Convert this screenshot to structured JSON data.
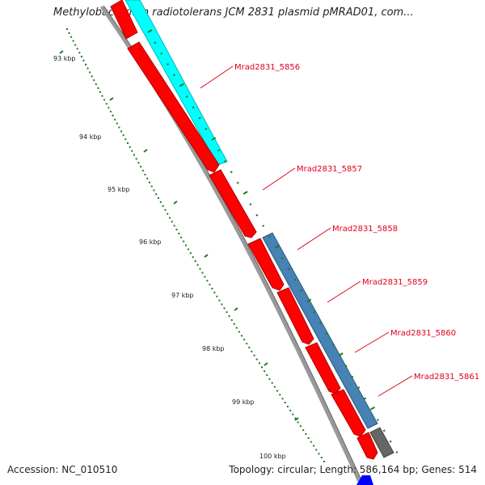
{
  "title": "Methylobacterium radiotolerans JCM 2831 plasmid pMRAD01, com...",
  "footer": {
    "accession": "Accession: NC_010510",
    "summary": "Topology: circular; Length: 586,164 bp; Genes: 514"
  },
  "scale": {
    "tick_labels": [
      "93 kbp",
      "94 kbp",
      "95 kbp",
      "96 kbp",
      "97 kbp",
      "98 kbp",
      "99 kbp",
      "100 kbp"
    ],
    "tick_color": "#1e7a1e"
  },
  "genes": [
    {
      "id": "Mrad2831_5856"
    },
    {
      "id": "Mrad2831_5857"
    },
    {
      "id": "Mrad2831_5858"
    },
    {
      "id": "Mrad2831_5859"
    },
    {
      "id": "Mrad2831_5860"
    },
    {
      "id": "Mrad2831_5861"
    }
  ],
  "colors": {
    "cds": "#ff0000",
    "cds_dark": "#c80000",
    "cyan_feature": "#00ffff",
    "blue_feature": "#4682b4",
    "gray_feature": "#666666",
    "backbone": "#999999",
    "label": "#e0001a"
  }
}
